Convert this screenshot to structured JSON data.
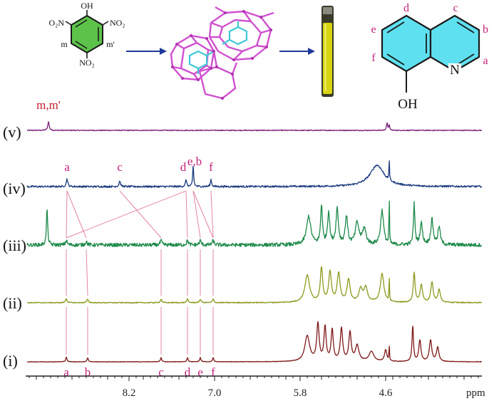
{
  "chart_data": {
    "type": "line",
    "x_axis": {
      "unit": "ppm",
      "range": [
        9.65,
        3.25
      ],
      "reversed": true,
      "ticks": [
        "8.2",
        "7.0",
        "5.8",
        "4.6"
      ],
      "tick_values": [
        8.2,
        7.0,
        5.8,
        4.6
      ],
      "minor_tick_step": 0.1
    },
    "y_axis": {
      "shown": false
    },
    "grid": false,
    "series": [
      {
        "name": "(v)",
        "color": "#7a1e78",
        "noise": 0.6,
        "peaks": [
          {
            "x": 9.33,
            "h": 12,
            "w": 0.012,
            "label": "m,m'"
          },
          {
            "x": 4.58,
            "h": 10,
            "w": 0.01
          },
          {
            "x": 4.55,
            "h": 7,
            "w": 0.008
          }
        ],
        "labels": [
          {
            "text": "m,m'",
            "x": 9.33
          }
        ]
      },
      {
        "name": "(iv)",
        "color": "#1a3a7e",
        "noise": 1.3,
        "peaks": [
          {
            "x": 9.07,
            "h": 11,
            "w": 0.012
          },
          {
            "x": 8.33,
            "h": 8,
            "w": 0.012
          },
          {
            "x": 7.4,
            "h": 10,
            "w": 0.01
          },
          {
            "x": 7.3,
            "h": 30,
            "w": 0.008
          },
          {
            "x": 7.05,
            "h": 10,
            "w": 0.01
          },
          {
            "x": 4.72,
            "h": 30,
            "w": 0.12
          },
          {
            "x": 4.55,
            "h": 72,
            "w": 0.004
          },
          {
            "x": 4.55,
            "h": -38,
            "w": 0.004
          }
        ],
        "labels": [
          {
            "text": "a",
            "x": 9.07
          },
          {
            "text": "c",
            "x": 8.33
          },
          {
            "text": "d",
            "x": 7.4
          },
          {
            "text": "e,b",
            "x": 7.3
          },
          {
            "text": "f",
            "x": 7.05
          }
        ]
      },
      {
        "name": "(iii)",
        "color": "#1e8a4a",
        "noise": 2.6,
        "peaks": [
          {
            "x": 9.35,
            "h": 52,
            "w": 0.01
          },
          {
            "x": 9.08,
            "h": 6,
            "w": 0.015
          },
          {
            "x": 8.8,
            "h": 5,
            "w": 0.015
          },
          {
            "x": 7.75,
            "h": 6,
            "w": 0.015
          },
          {
            "x": 7.38,
            "h": 6,
            "w": 0.015
          },
          {
            "x": 7.2,
            "h": 6,
            "w": 0.015
          },
          {
            "x": 7.02,
            "h": 6,
            "w": 0.015
          },
          {
            "x": 5.68,
            "h": 40,
            "w": 0.035
          },
          {
            "x": 5.5,
            "h": 55,
            "w": 0.015
          },
          {
            "x": 5.4,
            "h": 45,
            "w": 0.018
          },
          {
            "x": 5.28,
            "h": 50,
            "w": 0.02
          },
          {
            "x": 5.15,
            "h": 40,
            "w": 0.02
          },
          {
            "x": 5.0,
            "h": 30,
            "w": 0.03
          },
          {
            "x": 4.9,
            "h": 22,
            "w": 0.03
          },
          {
            "x": 4.65,
            "h": 48,
            "w": 0.025
          },
          {
            "x": 4.55,
            "h": 70,
            "w": 0.004
          },
          {
            "x": 4.2,
            "h": 58,
            "w": 0.012
          },
          {
            "x": 4.1,
            "h": 30,
            "w": 0.02
          },
          {
            "x": 3.95,
            "h": 35,
            "w": 0.02
          },
          {
            "x": 3.85,
            "h": 25,
            "w": 0.02
          }
        ],
        "labels": []
      },
      {
        "name": "(ii)",
        "color": "#8f9a20",
        "noise": 0.7,
        "peaks": [
          {
            "x": 9.08,
            "h": 6,
            "w": 0.012
          },
          {
            "x": 8.78,
            "h": 5,
            "w": 0.012
          },
          {
            "x": 7.75,
            "h": 5,
            "w": 0.012
          },
          {
            "x": 7.38,
            "h": 5,
            "w": 0.012
          },
          {
            "x": 7.2,
            "h": 5,
            "w": 0.012
          },
          {
            "x": 7.02,
            "h": 5,
            "w": 0.012
          },
          {
            "x": 5.7,
            "h": 38,
            "w": 0.04
          },
          {
            "x": 5.5,
            "h": 48,
            "w": 0.02
          },
          {
            "x": 5.38,
            "h": 42,
            "w": 0.022
          },
          {
            "x": 5.26,
            "h": 40,
            "w": 0.025
          },
          {
            "x": 5.12,
            "h": 32,
            "w": 0.025
          },
          {
            "x": 4.95,
            "h": 18,
            "w": 0.03
          },
          {
            "x": 4.88,
            "h": 20,
            "w": 0.03
          },
          {
            "x": 4.65,
            "h": 40,
            "w": 0.03
          },
          {
            "x": 4.55,
            "h": 68,
            "w": 0.004
          },
          {
            "x": 4.55,
            "h": -30,
            "w": 0.004
          },
          {
            "x": 4.2,
            "h": 42,
            "w": 0.015
          },
          {
            "x": 4.1,
            "h": 25,
            "w": 0.02
          },
          {
            "x": 3.95,
            "h": 28,
            "w": 0.02
          },
          {
            "x": 3.85,
            "h": 18,
            "w": 0.02
          }
        ],
        "labels": []
      },
      {
        "name": "(i)",
        "color": "#7f1818",
        "noise": 0.35,
        "peaks": [
          {
            "x": 9.08,
            "h": 7,
            "w": 0.01
          },
          {
            "x": 8.78,
            "h": 6,
            "w": 0.01
          },
          {
            "x": 7.75,
            "h": 6,
            "w": 0.01
          },
          {
            "x": 7.38,
            "h": 6,
            "w": 0.01
          },
          {
            "x": 7.2,
            "h": 6,
            "w": 0.01
          },
          {
            "x": 7.02,
            "h": 6,
            "w": 0.01
          },
          {
            "x": 5.7,
            "h": 36,
            "w": 0.04
          },
          {
            "x": 5.55,
            "h": 52,
            "w": 0.02
          },
          {
            "x": 5.45,
            "h": 48,
            "w": 0.018
          },
          {
            "x": 5.35,
            "h": 44,
            "w": 0.018
          },
          {
            "x": 5.22,
            "h": 46,
            "w": 0.02
          },
          {
            "x": 5.1,
            "h": 40,
            "w": 0.02
          },
          {
            "x": 5.0,
            "h": 22,
            "w": 0.03
          },
          {
            "x": 4.8,
            "h": 14,
            "w": 0.04
          },
          {
            "x": 4.6,
            "h": 16,
            "w": 0.02
          },
          {
            "x": 4.55,
            "h": 24,
            "w": 0.004
          },
          {
            "x": 4.22,
            "h": 50,
            "w": 0.012
          },
          {
            "x": 4.12,
            "h": 30,
            "w": 0.018
          },
          {
            "x": 3.97,
            "h": 30,
            "w": 0.02
          },
          {
            "x": 3.87,
            "h": 20,
            "w": 0.02
          }
        ],
        "labels": [
          {
            "text": "a",
            "x": 9.08
          },
          {
            "text": "b",
            "x": 8.78
          },
          {
            "text": "c",
            "x": 7.75
          },
          {
            "text": "d",
            "x": 7.38
          },
          {
            "text": "e",
            "x": 7.2
          },
          {
            "text": "f",
            "x": 7.02
          }
        ]
      }
    ],
    "correlation_links": [
      {
        "from_series": "(iv)",
        "from_x": 9.07,
        "to_series": "(iii)",
        "to_x": 9.08
      },
      {
        "from_series": "(iv)",
        "from_x": 9.07,
        "to_series": "(iii)",
        "to_x": 8.8
      },
      {
        "from_series": "(iv)",
        "from_x": 8.33,
        "to_series": "(iii)",
        "to_x": 7.75
      },
      {
        "from_series": "(iv)",
        "from_x": 7.4,
        "to_series": "(iii)",
        "to_x": 9.08
      },
      {
        "from_series": "(iv)",
        "from_x": 7.4,
        "to_series": "(iii)",
        "to_x": 7.38
      },
      {
        "from_series": "(iv)",
        "from_x": 7.3,
        "to_series": "(iii)",
        "to_x": 7.2
      },
      {
        "from_series": "(iv)",
        "from_x": 7.3,
        "to_series": "(iii)",
        "to_x": 7.02
      },
      {
        "from_series": "(iv)",
        "from_x": 7.05,
        "to_series": "(iii)",
        "to_x": 7.02
      },
      {
        "from_series": "(ii)",
        "from_x": 9.08,
        "to_series": "(iii)",
        "to_x": 9.08
      },
      {
        "from_series": "(ii)",
        "from_x": 8.78,
        "to_series": "(iii)",
        "to_x": 8.8
      },
      {
        "from_series": "(ii)",
        "from_x": 7.75,
        "to_series": "(iii)",
        "to_x": 7.75
      },
      {
        "from_series": "(ii)",
        "from_x": 7.38,
        "to_series": "(iii)",
        "to_x": 7.38
      },
      {
        "from_series": "(ii)",
        "from_x": 7.2,
        "to_series": "(iii)",
        "to_x": 7.2
      },
      {
        "from_series": "(ii)",
        "from_x": 7.02,
        "to_series": "(iii)",
        "to_x": 7.02
      },
      {
        "from_series": "(i)",
        "from_x": 9.08,
        "to_series": "(ii)",
        "to_x": 9.08
      },
      {
        "from_series": "(i)",
        "from_x": 8.78,
        "to_series": "(ii)",
        "to_x": 8.78
      },
      {
        "from_series": "(i)",
        "from_x": 7.75,
        "to_series": "(ii)",
        "to_x": 7.75
      },
      {
        "from_series": "(i)",
        "from_x": 7.38,
        "to_series": "(ii)",
        "to_x": 7.38
      },
      {
        "from_series": "(i)",
        "from_x": 7.2,
        "to_series": "(ii)",
        "to_x": 7.2
      },
      {
        "from_series": "(i)",
        "from_x": 7.02,
        "to_series": "(ii)",
        "to_x": 7.02
      }
    ],
    "link_color": "#e0789a",
    "label_color": "#c4227a"
  },
  "scheme": {
    "picric_acid": {
      "oh": "OH",
      "o2n_left": "O₂N",
      "no2_right": "NO₂",
      "no2_bottom": "NO₂",
      "m": "m",
      "m_prime": "m'"
    },
    "quinolinol": {
      "oh": "OH",
      "n": "N",
      "letters": [
        "a",
        "b",
        "c",
        "d",
        "e",
        "f"
      ]
    },
    "colors": {
      "ring_green": "#5cc24a",
      "ring_cyan": "#5fe0f0",
      "cage_magenta": "#d050d0",
      "guest_cyan": "#40c8d8",
      "arrow_blue": "#1f3a9a",
      "tube_yellow": "#d8d410",
      "label_red": "#c82030",
      "label_magenta": "#c4227a"
    }
  }
}
